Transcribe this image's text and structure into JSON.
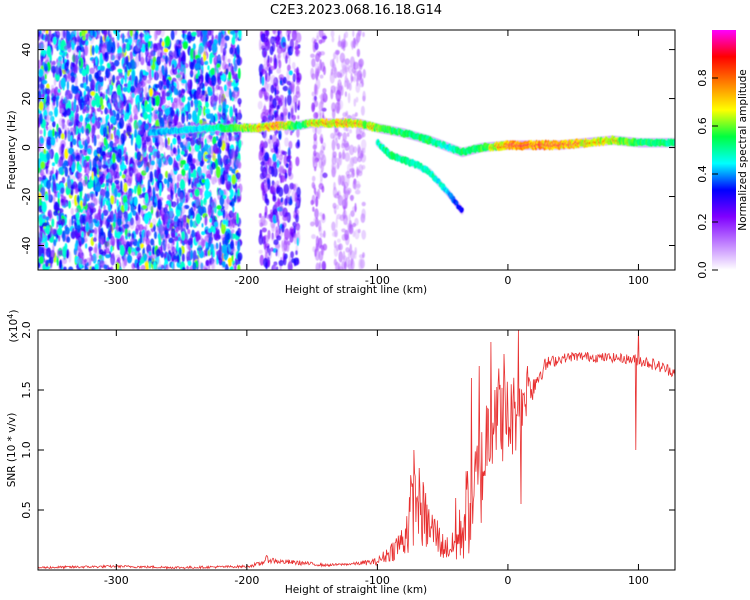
{
  "title": "C2E3.2023.068.16.18.G14",
  "colorbar": {
    "label": "Normalized spectral amplitude",
    "ticks": [
      "0.0",
      "0.2",
      "0.4",
      "0.6",
      "0.8"
    ],
    "tick_values": [
      0.0,
      0.2,
      0.4,
      0.6,
      0.8
    ],
    "range": [
      0,
      1
    ],
    "colormap": [
      "#ffffff",
      "#c080ff",
      "#8000ff",
      "#0000ff",
      "#00ffff",
      "#00ff40",
      "#ffff00",
      "#ff8000",
      "#ff0000",
      "#ff00ff"
    ]
  },
  "chart_data": [
    {
      "type": "heatmap",
      "title": "C2E3.2023.068.16.18.G14",
      "xlabel": "Height of straight line (km)",
      "ylabel": "Frequency (Hz)",
      "xlim": [
        -360,
        128
      ],
      "ylim": [
        -50,
        48
      ],
      "xticks": [
        -300,
        -200,
        -100,
        0,
        100
      ],
      "xtick_labels": [
        "-300",
        "-200",
        "-100",
        "0",
        "100"
      ],
      "yticks": [
        -40,
        -20,
        0,
        20,
        40
      ],
      "ytick_labels": [
        "-40",
        "-20",
        "0",
        "20",
        "40"
      ],
      "noise_regions": [
        {
          "x": [
            -360,
            -205
          ],
          "level": 0.25
        },
        {
          "x": [
            -190,
            -160
          ],
          "level": 0.15
        },
        {
          "x": [
            -150,
            -140
          ],
          "level": 0.08
        },
        {
          "x": [
            -135,
            -110
          ],
          "level": 0.05
        }
      ],
      "main_trace": {
        "x": [
          -275,
          -230,
          -210,
          -190,
          -175,
          -160,
          -150,
          -130,
          -115,
          -100,
          -80,
          -60,
          -45,
          -35,
          -20,
          0,
          20,
          40,
          60,
          80,
          100,
          128
        ],
        "y": [
          6,
          8,
          8,
          8,
          9,
          9,
          10,
          10,
          10,
          8,
          6,
          3,
          0,
          -2,
          0,
          1,
          1,
          1,
          2,
          3,
          2,
          2
        ],
        "amplitude": [
          0.3,
          0.4,
          0.6,
          0.8,
          0.85,
          0.5,
          0.75,
          0.8,
          0.8,
          0.65,
          0.55,
          0.55,
          0.4,
          0.55,
          0.6,
          0.9,
          0.95,
          0.9,
          0.8,
          0.75,
          0.6,
          0.5
        ]
      },
      "branch_trace": {
        "x": [
          -100,
          -90,
          -80,
          -70,
          -60,
          -50,
          -45,
          -35
        ],
        "y": [
          2,
          -3,
          -5,
          -7,
          -10,
          -16,
          -19,
          -26
        ],
        "amplitude": [
          0.45,
          0.55,
          0.5,
          0.45,
          0.45,
          0.4,
          0.3,
          0.15
        ]
      }
    },
    {
      "type": "line",
      "xlabel": "Height of straight line (km)",
      "ylabel": "SNR (10 * v/v)",
      "y_multiplier": "(x10",
      "y_multiplier_exp": "4",
      "y_multiplier_close": ")",
      "xlim": [
        -360,
        128
      ],
      "ylim": [
        0,
        2.0
      ],
      "xticks": [
        -300,
        -200,
        -100,
        0,
        100
      ],
      "xtick_labels": [
        "-300",
        "-200",
        "-100",
        "0",
        "100"
      ],
      "yticks": [
        0.5,
        1.0,
        1.5,
        2.0
      ],
      "ytick_labels": [
        "0.5",
        "1.0",
        "1.5",
        "2.0"
      ],
      "color": "#e83030",
      "series": [
        {
          "x": [
            -360,
            -300,
            -250,
            -200,
            -190,
            -185,
            -175,
            -160,
            -140,
            -120,
            -100,
            -90,
            -80,
            -75,
            -70,
            -65,
            -60,
            -55,
            -50,
            -45,
            -40,
            -35,
            -30,
            -25,
            -20,
            -15,
            -10,
            -5,
            0,
            5,
            10,
            15,
            20,
            25,
            30,
            40,
            50,
            60,
            70,
            80,
            90,
            100,
            110,
            120,
            128
          ],
          "y": [
            0.02,
            0.03,
            0.02,
            0.03,
            0.05,
            0.09,
            0.07,
            0.06,
            0.04,
            0.05,
            0.07,
            0.15,
            0.25,
            0.45,
            0.6,
            0.45,
            0.35,
            0.3,
            0.2,
            0.18,
            0.2,
            0.35,
            0.55,
            0.7,
            0.8,
            1.2,
            1.35,
            1.3,
            1.25,
            1.3,
            1.4,
            1.5,
            1.55,
            1.65,
            1.72,
            1.76,
            1.78,
            1.78,
            1.77,
            1.77,
            1.76,
            1.75,
            1.72,
            1.68,
            1.65
          ],
          "noise_amplitude": [
            0.01,
            0.01,
            0.01,
            0.01,
            0.02,
            0.03,
            0.02,
            0.02,
            0.01,
            0.01,
            0.03,
            0.08,
            0.15,
            0.35,
            0.3,
            0.3,
            0.2,
            0.18,
            0.12,
            0.1,
            0.15,
            0.3,
            0.45,
            0.4,
            0.45,
            0.45,
            0.4,
            0.4,
            0.4,
            0.35,
            0.3,
            0.2,
            0.12,
            0.08,
            0.06,
            0.04,
            0.04,
            0.04,
            0.04,
            0.04,
            0.04,
            0.05,
            0.05,
            0.05,
            0.05
          ],
          "spikes": [
            {
              "x": -72,
              "y": 1.0
            },
            {
              "x": -68,
              "y": 0.85
            },
            {
              "x": -40,
              "y": 0.6
            },
            {
              "x": -28,
              "y": 1.6
            },
            {
              "x": -22,
              "y": 1.7
            },
            {
              "x": -13,
              "y": 1.9
            },
            {
              "x": -10,
              "y": 1.5
            },
            {
              "x": -3,
              "y": 1.8
            },
            {
              "x": 8,
              "y": 2.0
            },
            {
              "x": 15,
              "y": 1.7
            },
            {
              "x": 100,
              "y": 2.0
            },
            {
              "x": 98,
              "y": 1.0
            },
            {
              "x": 10,
              "y": 0.55
            }
          ]
        }
      ]
    }
  ]
}
